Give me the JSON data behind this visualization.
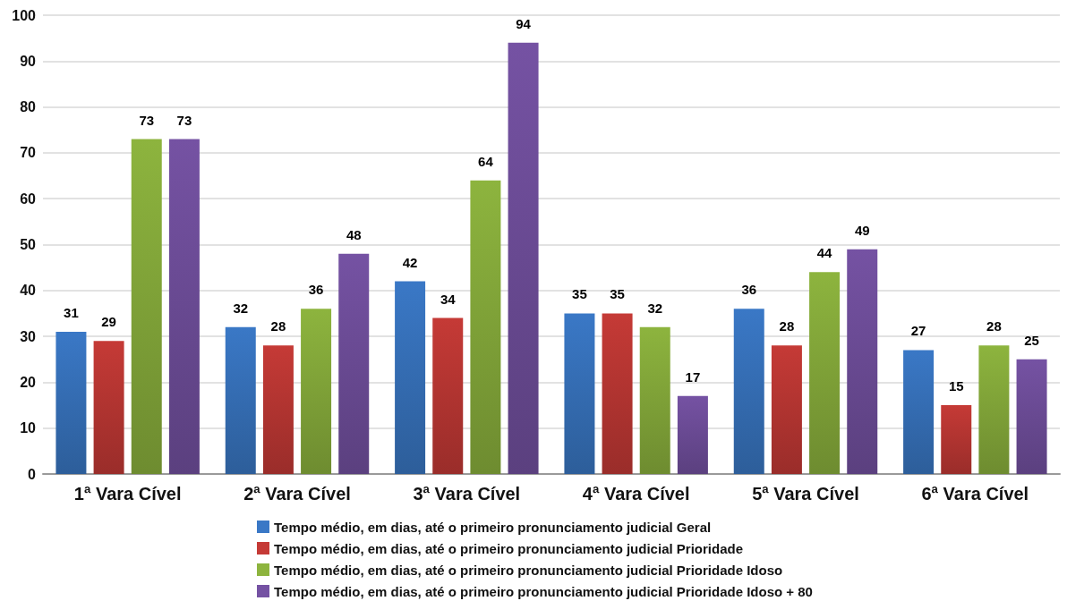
{
  "chart_data": {
    "type": "bar",
    "categories": [
      "1ª Vara Cível",
      "2ª Vara Cível",
      "3ª Vara Cível",
      "4ª Vara Cível",
      "5ª Vara Cível",
      "6ª Vara Cível"
    ],
    "series": [
      {
        "name": "Tempo médio, em dias, até o primeiro pronunciamento judicial Geral",
        "color": "#3a78c6",
        "values": [
          31,
          32,
          42,
          35,
          36,
          27
        ]
      },
      {
        "name": "Tempo médio, em dias, até o primeiro pronunciamento judicial Prioridade",
        "color": "#c53a36",
        "values": [
          29,
          28,
          34,
          35,
          28,
          15
        ]
      },
      {
        "name": "Tempo médio, em dias, até o primeiro pronunciamento judicial Prioridade Idoso",
        "color": "#8db43e",
        "values": [
          73,
          36,
          64,
          32,
          44,
          28
        ]
      },
      {
        "name": "Tempo médio, em dias, até o primeiro pronunciamento judicial Prioridade Idoso + 80",
        "color": "#7552a3",
        "values": [
          73,
          48,
          94,
          17,
          49,
          25
        ]
      }
    ],
    "ylim": [
      0,
      100
    ],
    "yticks": [
      0,
      10,
      20,
      30,
      40,
      50,
      60,
      70,
      80,
      90,
      100
    ],
    "grid": "y",
    "legend": "bottom",
    "data_labels": true
  }
}
